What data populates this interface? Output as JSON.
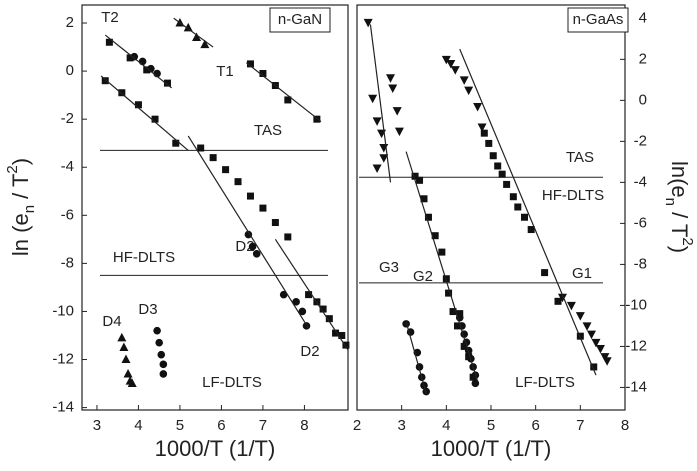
{
  "chart_data": [
    {
      "type": "scatter",
      "box_label": "n-GaN",
      "xlabel": "1000/T (1/T)",
      "ylabel": [
        "ln (e",
        "n",
        " / T",
        "2",
        ")"
      ],
      "y_axis_side": "left",
      "xlim": [
        2.64,
        9.05
      ],
      "ylim": [
        -14.1,
        2.75
      ],
      "xticks": [
        3,
        4,
        5,
        6,
        7,
        8
      ],
      "yticks": [
        2,
        0,
        -2,
        -4,
        -6,
        -8,
        -10,
        -12,
        -14
      ],
      "hlines": [
        -3.3,
        -8.5
      ],
      "annotations": [
        "T2",
        "T1",
        "D2",
        "D2",
        "D3",
        "D4",
        "TAS",
        "HF-DLTS",
        "LF-DLTS"
      ],
      "series": [
        {
          "marker": "square",
          "x": [
            3.3,
            3.8,
            4.2,
            4.7
          ],
          "values": [
            1.2,
            0.55,
            0.05,
            -0.5
          ]
        },
        {
          "marker": "circle",
          "x": [
            3.9,
            4.1,
            4.3,
            4.45
          ],
          "values": [
            0.6,
            0.4,
            0.1,
            -0.1
          ]
        },
        {
          "marker": "square",
          "x": [
            3.2,
            3.6,
            4.0,
            4.4,
            4.9,
            5.5,
            5.8,
            6.1,
            6.4,
            6.7,
            7.0,
            7.3,
            7.6
          ],
          "values": [
            -0.4,
            -0.9,
            -1.4,
            -2.0,
            -3.0,
            -3.2,
            -3.6,
            -4.1,
            -4.6,
            -5.2,
            -5.7,
            -6.3,
            -6.9
          ]
        },
        {
          "marker": "circle",
          "x": [
            6.65,
            6.75,
            6.85,
            7.5,
            7.8,
            7.95,
            8.05
          ],
          "values": [
            -6.8,
            -7.3,
            -7.6,
            -9.3,
            -9.6,
            -10.0,
            -10.6
          ]
        },
        {
          "marker": "square",
          "x": [
            8.1,
            8.3,
            8.45,
            8.6,
            8.75,
            8.9,
            9.0
          ],
          "values": [
            -9.3,
            -9.6,
            -9.9,
            -10.3,
            -10.9,
            -11.0,
            -11.4
          ]
        },
        {
          "marker": "triangle",
          "x": [
            5.0,
            5.2,
            5.4,
            5.6
          ],
          "values": [
            2.0,
            1.8,
            1.4,
            1.1
          ]
        },
        {
          "marker": "square",
          "x": [
            6.7,
            7.0,
            7.3,
            7.6,
            8.3
          ],
          "values": [
            0.3,
            -0.1,
            -0.6,
            -1.2,
            -2.0
          ]
        },
        {
          "marker": "triangle",
          "x": [
            3.6,
            3.65,
            3.7,
            3.75,
            3.8,
            3.85
          ],
          "values": [
            -11.1,
            -11.5,
            -12.0,
            -12.6,
            -12.9,
            -13.0
          ]
        },
        {
          "marker": "circle",
          "x": [
            4.45,
            4.5,
            4.55,
            4.6,
            4.6
          ],
          "values": [
            -10.8,
            -11.3,
            -11.8,
            -12.2,
            -12.6
          ]
        },
        {
          "marker": "none",
          "x": [
            3.2,
            4.8
          ],
          "values": [
            1.5,
            -0.7
          ]
        },
        {
          "marker": "none",
          "x": [
            3.1,
            5.2
          ],
          "values": [
            -0.2,
            -3.3
          ]
        },
        {
          "marker": "none",
          "x": [
            5.2,
            8.1
          ],
          "values": [
            -2.7,
            -10.7
          ]
        },
        {
          "marker": "none",
          "x": [
            7.3,
            9.05
          ],
          "values": [
            -7.0,
            -11.6
          ]
        },
        {
          "marker": "none",
          "x": [
            4.85,
            5.8
          ],
          "values": [
            2.2,
            1.0
          ]
        },
        {
          "marker": "none",
          "x": [
            6.6,
            8.4
          ],
          "values": [
            0.35,
            -2.1
          ]
        }
      ]
    },
    {
      "type": "scatter",
      "box_label": "n-GaAs",
      "xlabel": "1000/T (1/T)",
      "ylabel": [
        "ln(e",
        "n",
        " / T",
        "2",
        ")"
      ],
      "y_axis_side": "right",
      "xlim": [
        2,
        8
      ],
      "ylim": [
        -15.1,
        4.65
      ],
      "xticks": [
        2,
        3,
        4,
        5,
        6,
        7,
        8
      ],
      "yticks": [
        4,
        2,
        0,
        -2,
        -4,
        -6,
        -8,
        -10,
        -12,
        -14
      ],
      "hlines": [
        -3.75,
        -8.9
      ],
      "annotations": [
        "TAS",
        "HF-DLTS",
        "G3",
        "G2",
        "G1",
        "LF-DLTS"
      ],
      "series": [
        {
          "marker": "triangle-down",
          "x": [
            4.0,
            4.1,
            4.2,
            4.4,
            4.5,
            4.7,
            4.8
          ],
          "values": [
            2.0,
            1.8,
            1.5,
            1.0,
            0.5,
            -0.3,
            -1.3
          ]
        },
        {
          "marker": "square",
          "x": [
            4.85,
            4.95,
            5.05,
            5.15,
            5.25,
            5.35,
            5.5,
            5.6,
            5.75,
            5.9,
            6.2,
            6.5,
            7.0,
            7.3
          ],
          "values": [
            -1.6,
            -2.1,
            -2.7,
            -3.2,
            -3.6,
            -4.1,
            -4.7,
            -5.2,
            -5.7,
            -6.3,
            -8.4,
            -9.8,
            -11.5,
            -13.0
          ]
        },
        {
          "marker": "triangle-down",
          "x": [
            6.6,
            6.8,
            7.0,
            7.15,
            7.25,
            7.35,
            7.45,
            7.55,
            7.6
          ],
          "values": [
            -9.6,
            -10.0,
            -10.5,
            -11.0,
            -11.4,
            -11.8,
            -12.1,
            -12.5,
            -12.7
          ]
        },
        {
          "marker": "triangle-down",
          "x": [
            2.25,
            2.35,
            2.45,
            2.55,
            2.6,
            2.45,
            2.6,
            2.75,
            2.8,
            2.9,
            2.95
          ],
          "values": [
            3.8,
            0.1,
            -1.0,
            -1.6,
            -2.3,
            -3.3,
            -2.8,
            1.1,
            0.6,
            -0.5,
            -1.5
          ]
        },
        {
          "marker": "square",
          "x": [
            3.3,
            3.4,
            3.5,
            3.6,
            3.75,
            3.9,
            4.0,
            4.05,
            4.15,
            4.3,
            4.25,
            4.4,
            4.5,
            4.6
          ],
          "values": [
            -3.7,
            -3.9,
            -4.8,
            -5.7,
            -6.6,
            -7.4,
            -8.7,
            -9.4,
            -10.3,
            -10.4,
            -11.0,
            -12.0,
            -12.5,
            -13.5
          ]
        },
        {
          "marker": "circle",
          "x": [
            4.3,
            4.35,
            4.4,
            4.45,
            4.5,
            4.55,
            4.6,
            4.65,
            4.65
          ],
          "values": [
            -10.6,
            -11.0,
            -11.4,
            -11.8,
            -12.2,
            -12.6,
            -13.0,
            -13.4,
            -13.8
          ]
        },
        {
          "marker": "circle",
          "x": [
            3.1,
            3.2,
            3.35,
            3.4,
            3.45,
            3.5,
            3.55
          ],
          "values": [
            -10.9,
            -11.3,
            -12.3,
            -13.0,
            -13.5,
            -13.9,
            -14.2
          ]
        },
        {
          "marker": "none",
          "x": [
            4.3,
            7.35
          ],
          "values": [
            2.5,
            -13.4
          ]
        },
        {
          "marker": "none",
          "x": [
            2.3,
            2.75
          ],
          "values": [
            3.7,
            -4.0
          ]
        },
        {
          "marker": "none",
          "x": [
            3.1,
            4.7
          ],
          "values": [
            -2.5,
            -13.7
          ]
        },
        {
          "marker": "none",
          "x": [
            3.1,
            3.55
          ],
          "values": [
            -10.8,
            -14.3
          ]
        }
      ]
    }
  ]
}
